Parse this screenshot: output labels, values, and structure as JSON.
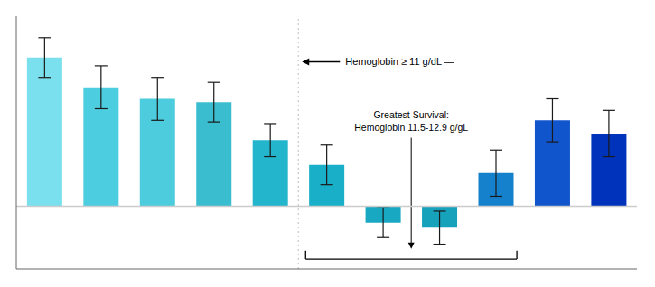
{
  "chart_data": {
    "type": "bar",
    "categories": [
      null,
      null,
      null,
      null,
      null,
      null,
      null,
      null,
      null,
      null,
      null
    ],
    "values": [
      0.9,
      0.72,
      0.65,
      0.63,
      0.4,
      0.25,
      -0.1,
      -0.13,
      0.2,
      0.52,
      0.44
    ],
    "errors": [
      0.12,
      0.13,
      0.13,
      0.12,
      0.1,
      0.12,
      0.09,
      0.1,
      0.14,
      0.13,
      0.14
    ],
    "colors": [
      "#7AE0EE",
      "#4DCDE0",
      "#4DCCDD",
      "#3BBDD0",
      "#22B5CC",
      "#1AAFC8",
      "#18A8C2",
      "#17A2BC",
      "#1580CC",
      "#1155CC",
      "#0033BB"
    ],
    "ylim": [
      -0.38,
      1.15
    ],
    "tick_labels": false,
    "grid": false,
    "hline": 0.0,
    "vline": 4.5,
    "annotations": [
      "Hemoglobin ≥ 11 g/dL —",
      "Greatest Survival:\nHemoglobin 11.5-12.9 g/gL"
    ]
  }
}
